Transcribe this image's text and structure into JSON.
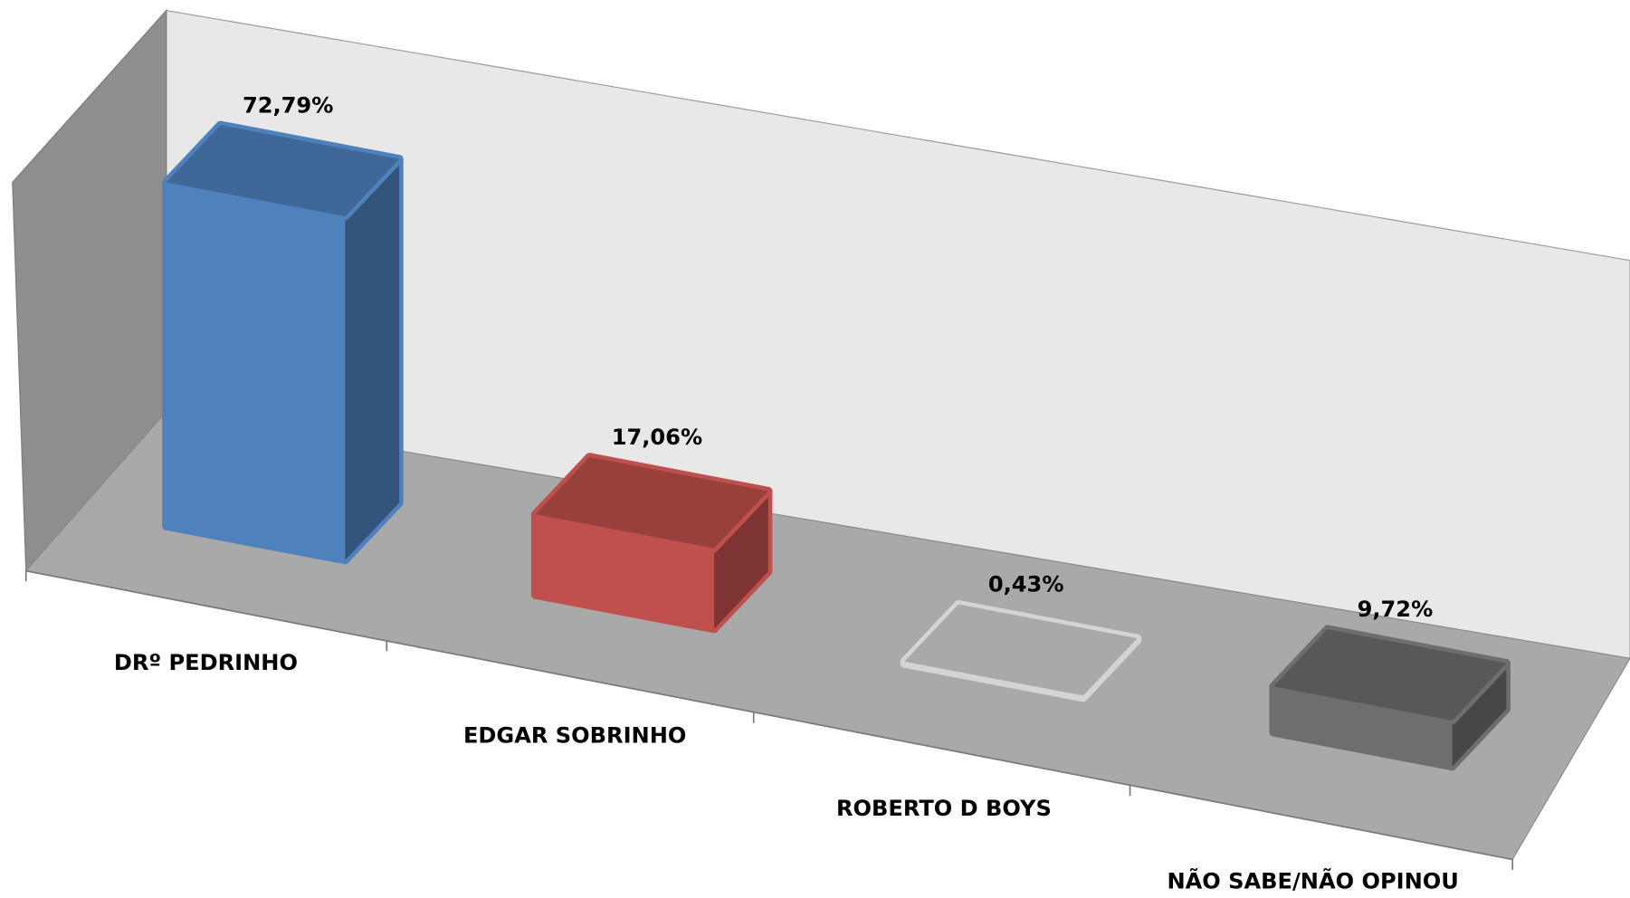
{
  "chart_data": {
    "type": "bar3d",
    "categories": [
      "DRº PEDRINHO",
      "EDGAR SOBRINHO",
      "ROBERTO D BOYS",
      "NÃO SABE/NÃO OPINOU"
    ],
    "values": [
      72.79,
      17.06,
      0.43,
      9.72
    ],
    "value_labels": [
      "72,79%",
      "17,06%",
      "0,43%",
      "9,72%"
    ],
    "colors": [
      "#4f81bd",
      "#c0504d",
      "#d4d4d4",
      "#6e6e6e"
    ]
  }
}
